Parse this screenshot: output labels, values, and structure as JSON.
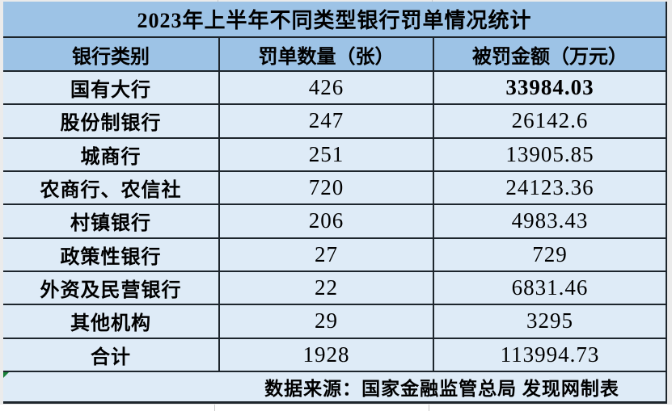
{
  "app": "spreadsheet-table",
  "table": {
    "title": "2023年上半年不同类型银行罚单情况统计",
    "columns": [
      "银行类别",
      "罚单数量（张）",
      "被罚金额（万元）"
    ],
    "rows": [
      {
        "category": "国有大行",
        "count": "426",
        "amount": "33984.03",
        "amount_bold": true
      },
      {
        "category": "股份制银行",
        "count": "247",
        "amount": "26142.6",
        "amount_bold": false
      },
      {
        "category": "城商行",
        "count": "251",
        "amount": "13905.85",
        "amount_bold": false
      },
      {
        "category": "农商行、农信社",
        "count": "720",
        "amount": "24123.36",
        "amount_bold": false
      },
      {
        "category": "村镇银行",
        "count": "206",
        "amount": "4983.43",
        "amount_bold": false
      },
      {
        "category": "政策性银行",
        "count": "27",
        "amount": "729",
        "amount_bold": false
      },
      {
        "category": "外资及民营银行",
        "count": "22",
        "amount": "6831.46",
        "amount_bold": false
      },
      {
        "category": "其他机构",
        "count": "29",
        "amount": "3295",
        "amount_bold": false
      },
      {
        "category": "合计",
        "count": "1928",
        "amount": "113994.73",
        "amount_bold": false
      }
    ],
    "footer": "数据来源：国家金融监管总局 发现网制表"
  },
  "colors": {
    "header_bg": "#9dc3e6",
    "body_bg": "#deebf7",
    "border": "#1d252c",
    "page_bg": "#ebebeb",
    "text": "#000000",
    "error_marker_green": "#188038"
  }
}
